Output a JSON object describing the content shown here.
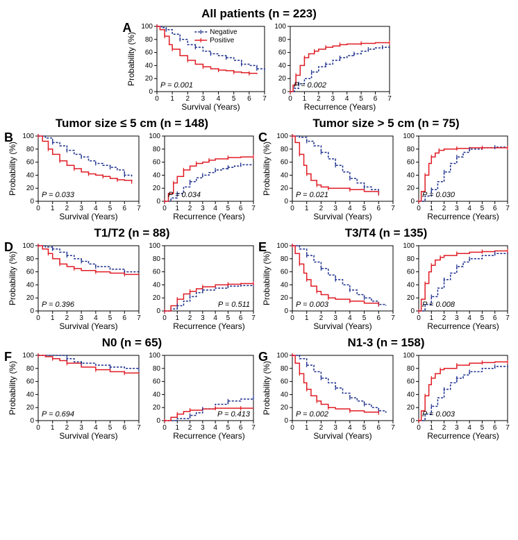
{
  "colors": {
    "negative": "#1a2d8c",
    "positive": "#e01b24",
    "axis": "#000000",
    "background": "#ffffff",
    "text": "#000000"
  },
  "typography": {
    "title_fontsize": 17,
    "letter_fontsize": 18,
    "axis_label_fontsize": 12,
    "tick_fontsize": 10,
    "pvalue_fontsize": 11,
    "legend_fontsize": 10
  },
  "legend": {
    "negative_label": "Negative",
    "positive_label": "Positive"
  },
  "axes": {
    "y_label": "Probability (%)",
    "y_lim": [
      0,
      100
    ],
    "y_ticks": [
      0,
      20,
      40,
      60,
      80,
      100
    ],
    "x_lim": [
      0,
      7
    ],
    "x_ticks": [
      0,
      1,
      2,
      3,
      4,
      5,
      6,
      7
    ],
    "x_label_survival": "Survival (Years)",
    "x_label_recurrence": "Recurrence (Years)"
  },
  "panels": {
    "A": {
      "title": "All patients (n = 223)",
      "survival": {
        "p_value": "P = 0.001",
        "negative": {
          "x": [
            0,
            0.3,
            0.6,
            1,
            1.5,
            2,
            2.5,
            3,
            3.5,
            4,
            4.5,
            5,
            5.5,
            6,
            6.5,
            7
          ],
          "y": [
            100,
            98,
            95,
            88,
            80,
            72,
            68,
            62,
            58,
            55,
            52,
            48,
            42,
            40,
            35,
            30
          ]
        },
        "positive": {
          "x": [
            0,
            0.2,
            0.5,
            0.8,
            1,
            1.5,
            2,
            2.5,
            3,
            3.5,
            4,
            4.5,
            5,
            5.5,
            6,
            6.5
          ],
          "y": [
            100,
            95,
            85,
            72,
            65,
            55,
            48,
            42,
            38,
            35,
            33,
            32,
            30,
            29,
            28,
            27
          ]
        }
      },
      "recurrence": {
        "p_value": "P = 0.002",
        "negative": {
          "x": [
            0,
            0.3,
            0.6,
            1,
            1.5,
            2,
            2.5,
            3,
            3.5,
            4,
            4.5,
            5,
            5.5,
            6,
            6.5,
            7
          ],
          "y": [
            0,
            5,
            12,
            20,
            30,
            38,
            42,
            48,
            52,
            55,
            58,
            62,
            65,
            67,
            68,
            68
          ]
        },
        "positive": {
          "x": [
            0,
            0.2,
            0.4,
            0.7,
            1,
            1.3,
            1.7,
            2,
            2.5,
            3,
            3.5,
            4,
            5,
            6,
            7
          ],
          "y": [
            0,
            10,
            25,
            40,
            52,
            58,
            62,
            65,
            68,
            70,
            72,
            73,
            74,
            75,
            75
          ]
        }
      }
    },
    "B": {
      "title": "Tumor size ≤ 5 cm (n = 148)",
      "survival": {
        "p_value": "P = 0.033",
        "negative": {
          "x": [
            0,
            0.5,
            1,
            1.5,
            2,
            2.5,
            3,
            3.5,
            4,
            4.5,
            5,
            5.5,
            6,
            6.5
          ],
          "y": [
            100,
            97,
            90,
            85,
            78,
            72,
            68,
            62,
            58,
            55,
            52,
            48,
            40,
            38
          ]
        },
        "positive": {
          "x": [
            0,
            0.3,
            0.7,
            1,
            1.5,
            2,
            2.5,
            3,
            3.5,
            4,
            4.5,
            5,
            5.5,
            6,
            6.5
          ],
          "y": [
            100,
            92,
            80,
            72,
            62,
            55,
            50,
            45,
            42,
            40,
            38,
            35,
            33,
            32,
            30
          ]
        }
      },
      "recurrence": {
        "p_value": "P = 0.034",
        "negative": {
          "x": [
            0,
            0.5,
            1,
            1.5,
            2,
            2.5,
            3,
            3.5,
            4,
            4.5,
            5,
            5.5,
            6,
            7
          ],
          "y": [
            0,
            5,
            12,
            22,
            30,
            36,
            40,
            44,
            48,
            50,
            52,
            54,
            56,
            56
          ]
        },
        "positive": {
          "x": [
            0,
            0.3,
            0.7,
            1,
            1.5,
            2,
            2.5,
            3,
            3.5,
            4,
            5,
            6,
            7
          ],
          "y": [
            0,
            12,
            28,
            38,
            48,
            54,
            58,
            60,
            63,
            65,
            67,
            68,
            68
          ]
        }
      }
    },
    "C": {
      "title": "Tumor size > 5 cm (n = 75)",
      "survival": {
        "p_value": "P = 0.021",
        "negative": {
          "x": [
            0,
            0.5,
            1,
            1.5,
            2,
            2.5,
            3,
            3.5,
            4,
            4.5,
            5,
            5.5,
            6
          ],
          "y": [
            100,
            98,
            92,
            85,
            75,
            65,
            55,
            45,
            35,
            28,
            22,
            18,
            12
          ]
        },
        "positive": {
          "x": [
            0,
            0.2,
            0.5,
            0.8,
            1,
            1.3,
            1.7,
            2,
            2.5,
            3,
            4,
            5,
            6
          ],
          "y": [
            100,
            90,
            72,
            55,
            42,
            32,
            25,
            22,
            20,
            20,
            18,
            15,
            12
          ]
        }
      },
      "recurrence": {
        "p_value": "P = 0.030",
        "negative": {
          "x": [
            0,
            0.5,
            1,
            1.5,
            2,
            2.5,
            3,
            3.5,
            4,
            5,
            6,
            7
          ],
          "y": [
            0,
            8,
            18,
            30,
            45,
            58,
            68,
            75,
            80,
            82,
            83,
            83
          ]
        },
        "positive": {
          "x": [
            0,
            0.2,
            0.5,
            0.8,
            1,
            1.3,
            1.6,
            2,
            3,
            4,
            5,
            6,
            7
          ],
          "y": [
            0,
            15,
            40,
            58,
            68,
            74,
            78,
            80,
            81,
            82,
            82,
            82,
            82
          ]
        }
      }
    },
    "D": {
      "title": "T1/T2 (n = 88)",
      "survival": {
        "p_value": "P = 0.396",
        "negative": {
          "x": [
            0,
            0.5,
            1,
            1.5,
            2,
            2.5,
            3,
            3.5,
            4,
            5,
            6,
            7
          ],
          "y": [
            100,
            98,
            95,
            90,
            85,
            80,
            76,
            72,
            68,
            64,
            60,
            58
          ]
        },
        "positive": {
          "x": [
            0,
            0.3,
            0.7,
            1,
            1.5,
            2,
            2.5,
            3,
            4,
            5,
            6,
            7
          ],
          "y": [
            100,
            95,
            88,
            80,
            72,
            68,
            65,
            62,
            60,
            58,
            56,
            55
          ]
        }
      },
      "recurrence": {
        "p_value": "P = 0.511",
        "negative": {
          "x": [
            0,
            0.5,
            1,
            1.5,
            2,
            2.5,
            3,
            4,
            5,
            6,
            7
          ],
          "y": [
            0,
            3,
            8,
            15,
            22,
            28,
            32,
            35,
            38,
            39,
            40
          ]
        },
        "positive": {
          "x": [
            0,
            0.5,
            1,
            1.5,
            2,
            2.5,
            3,
            4,
            5,
            6,
            7
          ],
          "y": [
            0,
            8,
            18,
            26,
            30,
            34,
            37,
            40,
            41,
            42,
            42
          ]
        }
      }
    },
    "E": {
      "title": "T3/T4 (n = 135)",
      "survival": {
        "p_value": "P = 0.003",
        "negative": {
          "x": [
            0,
            0.5,
            1,
            1.5,
            2,
            2.5,
            3,
            3.5,
            4,
            4.5,
            5,
            5.5,
            6,
            6.5
          ],
          "y": [
            100,
            95,
            85,
            75,
            65,
            55,
            48,
            40,
            32,
            25,
            20,
            15,
            10,
            8
          ]
        },
        "positive": {
          "x": [
            0,
            0.2,
            0.5,
            0.8,
            1,
            1.3,
            1.7,
            2,
            2.5,
            3,
            4,
            5,
            6
          ],
          "y": [
            100,
            88,
            72,
            58,
            48,
            38,
            30,
            25,
            20,
            18,
            15,
            12,
            10
          ]
        }
      },
      "recurrence": {
        "p_value": "P = 0.008",
        "negative": {
          "x": [
            0,
            0.5,
            1,
            1.5,
            2,
            2.5,
            3,
            3.5,
            4,
            5,
            6,
            7
          ],
          "y": [
            0,
            10,
            22,
            35,
            48,
            58,
            68,
            75,
            80,
            85,
            88,
            90
          ]
        },
        "positive": {
          "x": [
            0,
            0.2,
            0.5,
            0.8,
            1,
            1.3,
            1.7,
            2,
            3,
            4,
            5,
            6,
            7
          ],
          "y": [
            0,
            18,
            42,
            60,
            70,
            78,
            82,
            85,
            88,
            90,
            91,
            92,
            92
          ]
        }
      }
    },
    "F": {
      "title": "N0 (n = 65)",
      "survival": {
        "p_value": "P = 0.694",
        "negative": {
          "x": [
            0,
            1,
            2,
            2.5,
            3,
            4,
            5,
            6,
            7
          ],
          "y": [
            100,
            100,
            95,
            90,
            88,
            85,
            82,
            80,
            78
          ]
        },
        "positive": {
          "x": [
            0,
            0.5,
            1,
            1.5,
            2,
            3,
            4,
            5,
            6,
            7
          ],
          "y": [
            100,
            98,
            95,
            92,
            88,
            82,
            78,
            75,
            73,
            72
          ]
        }
      },
      "recurrence": {
        "p_value": "P = 0.413",
        "negative": {
          "x": [
            0,
            1,
            2,
            2.5,
            3,
            4,
            5,
            6,
            7
          ],
          "y": [
            0,
            3,
            8,
            12,
            18,
            25,
            30,
            33,
            35
          ]
        },
        "positive": {
          "x": [
            0,
            0.5,
            1,
            1.5,
            2,
            3,
            4,
            5,
            6,
            7
          ],
          "y": [
            0,
            5,
            10,
            14,
            16,
            18,
            19,
            19,
            19,
            19
          ]
        }
      }
    },
    "G": {
      "title": "N1-3 (n = 158)",
      "survival": {
        "p_value": "P = 0.002",
        "negative": {
          "x": [
            0,
            0.5,
            1,
            1.5,
            2,
            2.5,
            3,
            3.5,
            4,
            4.5,
            5,
            5.5,
            6,
            6.5
          ],
          "y": [
            100,
            95,
            85,
            75,
            65,
            58,
            50,
            42,
            35,
            30,
            25,
            20,
            15,
            12
          ]
        },
        "positive": {
          "x": [
            0,
            0.2,
            0.5,
            0.8,
            1,
            1.3,
            1.7,
            2,
            2.5,
            3,
            4,
            5,
            6
          ],
          "y": [
            100,
            88,
            72,
            58,
            48,
            38,
            30,
            25,
            20,
            18,
            15,
            13,
            12
          ]
        }
      },
      "recurrence": {
        "p_value": "P = 0.003",
        "negative": {
          "x": [
            0,
            0.5,
            1,
            1.5,
            2,
            2.5,
            3,
            3.5,
            4,
            5,
            6,
            7
          ],
          "y": [
            0,
            10,
            22,
            35,
            48,
            58,
            65,
            70,
            75,
            80,
            83,
            84
          ]
        },
        "positive": {
          "x": [
            0,
            0.2,
            0.5,
            0.8,
            1,
            1.3,
            1.7,
            2,
            3,
            4,
            5,
            6,
            7
          ],
          "y": [
            0,
            15,
            38,
            55,
            65,
            72,
            78,
            80,
            85,
            88,
            89,
            90,
            90
          ]
        }
      }
    }
  }
}
